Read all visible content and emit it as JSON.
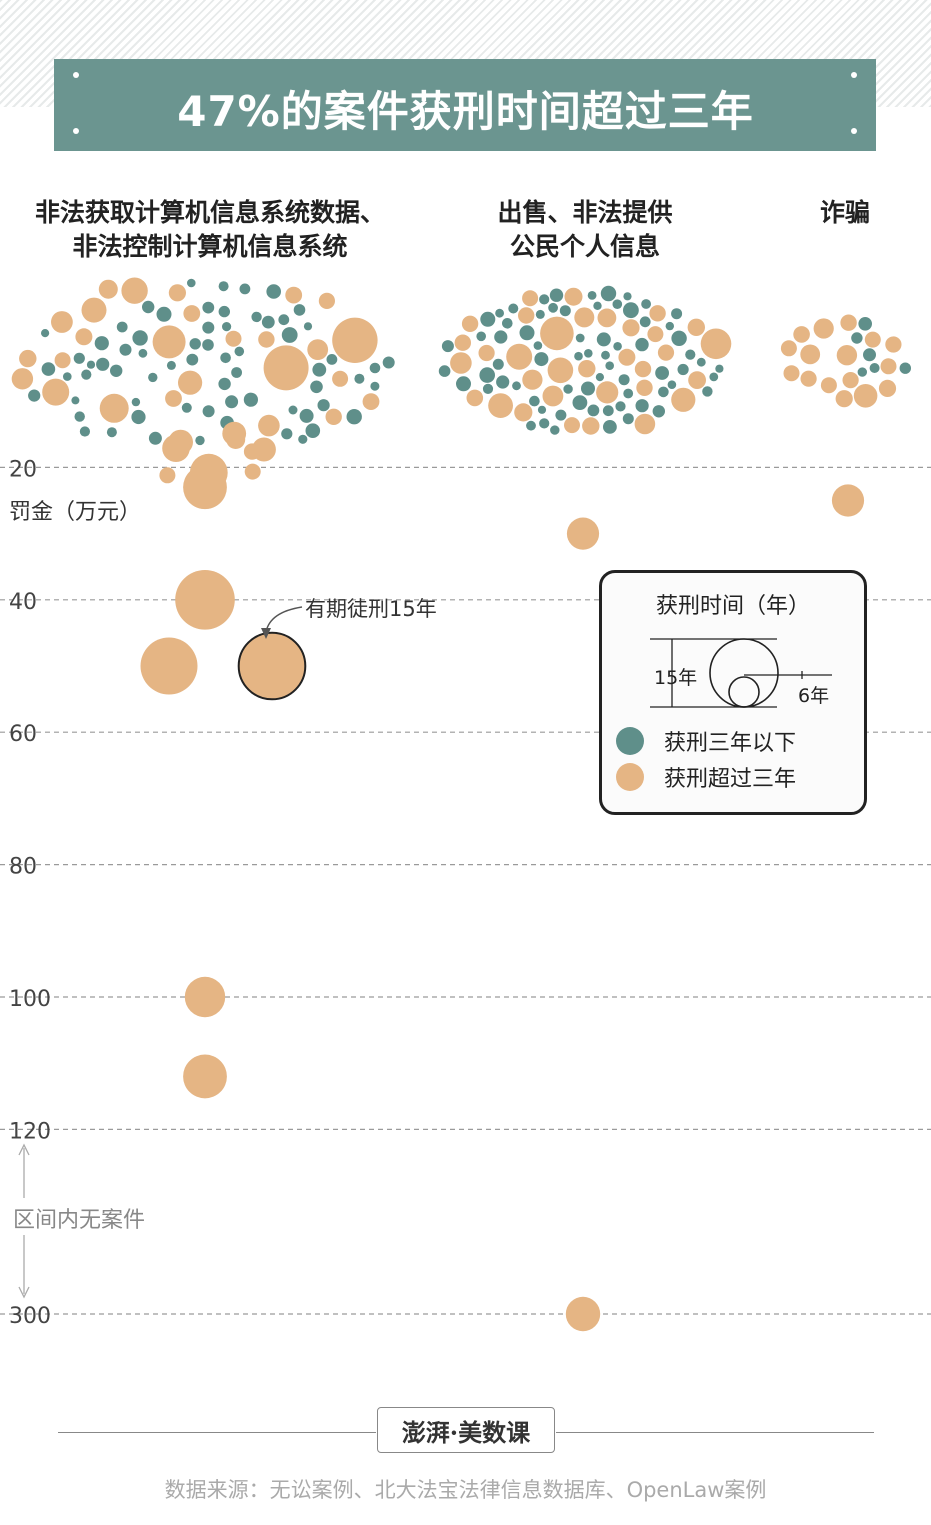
{
  "title": "47%的案件获刑时间超过三年",
  "categories": [
    {
      "lines": [
        "非法获取计算机信息系统数据、",
        "非法控制计算机信息系统"
      ]
    },
    {
      "lines": [
        "出售、非法提供",
        "公民个人信息"
      ]
    },
    {
      "lines": [
        "诈骗"
      ]
    }
  ],
  "y_axis_unit": "罚金（万元）",
  "gap_note": "区间内无案件",
  "annotation": "有期徒刑15年",
  "legend": {
    "title": "获刑时间（年）",
    "size_large": "15年",
    "size_small": "6年",
    "items": [
      {
        "label": "获刑三年以下",
        "color": "#5f8f8a"
      },
      {
        "label": "获刑超过三年",
        "color": "#e5b584"
      }
    ]
  },
  "logo": "澎湃·美数课",
  "source": "数据来源：无讼案例、北大法宝法律信息数据库、OpenLaw案例",
  "colors": {
    "teal": "#5f8f8a",
    "orange": "#e5b584",
    "title_band": "#6b9590"
  },
  "chart_data": {
    "type": "scatter",
    "encoding": "x = 案件类别；y = 罚金（万元）；圆面积 = 获刑时间（年）；颜色 = 获刑是否超过三年",
    "y_ticks": [
      20,
      40,
      60,
      80,
      100,
      120,
      300
    ],
    "y_axis_break": [
      120,
      300
    ],
    "highlighted_note": "有期徒刑15年",
    "outliers": [
      {
        "category": "非法获取计算机信息系统数据、非法控制计算机信息系统",
        "fine": 23,
        "years": 6.5,
        "group": "over3"
      },
      {
        "category": "非法获取计算机信息系统数据、非法控制计算机信息系统",
        "fine": 40,
        "years": 12,
        "group": "over3"
      },
      {
        "category": "非法获取计算机信息系统数据、非法控制计算机信息系统",
        "fine": 50,
        "years": 11,
        "group": "over3"
      },
      {
        "category": "非法获取计算机信息系统数据、非法控制计算机信息系统",
        "fine": 50,
        "years": 15,
        "group": "over3",
        "highlight": true
      },
      {
        "category": "非法获取计算机信息系统数据、非法控制计算机信息系统",
        "fine": 100,
        "years": 5.5,
        "group": "over3"
      },
      {
        "category": "非法获取计算机信息系统数据、非法控制计算机信息系统",
        "fine": 112,
        "years": 6.5,
        "group": "over3"
      },
      {
        "category": "出售、非法提供公民个人信息",
        "fine": 30,
        "years": 3.5,
        "group": "over3"
      },
      {
        "category": "出售、非法提供公民个人信息",
        "fine": 300,
        "years": 4,
        "group": "over3"
      },
      {
        "category": "诈骗",
        "fine": 25,
        "years": 3.5,
        "group": "over3"
      }
    ]
  }
}
